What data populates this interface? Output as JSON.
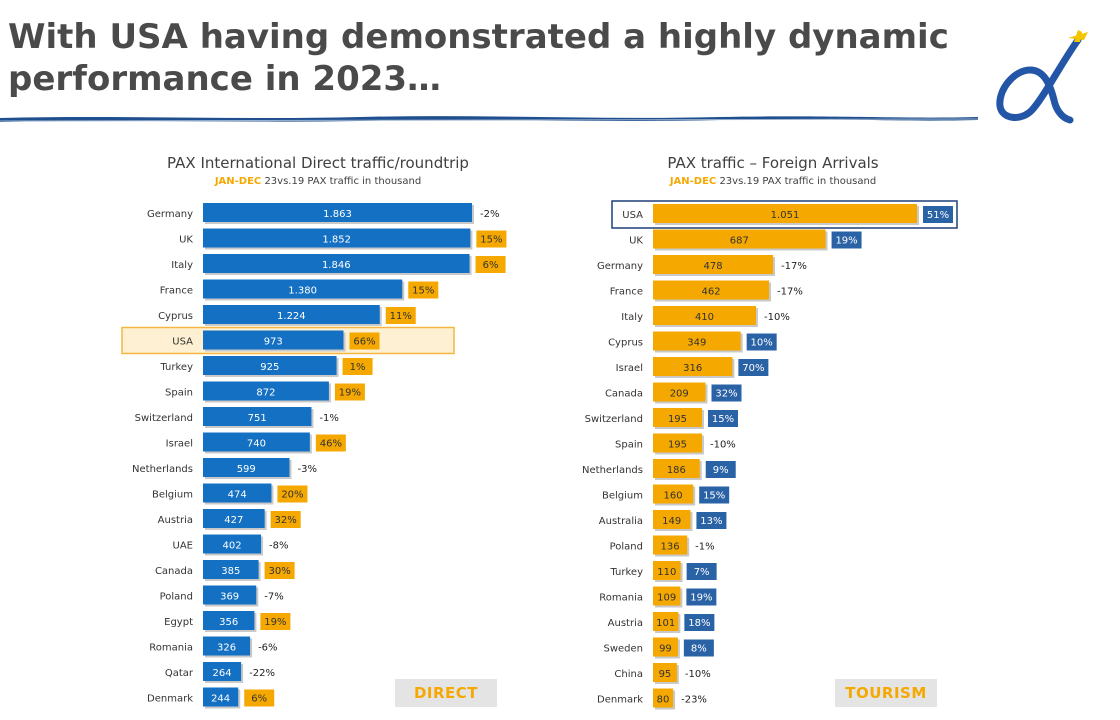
{
  "title_line1": "With USA having demonstrated a highly dynamic",
  "title_line2": "performance in 2023…",
  "colors": {
    "blue": "#1470c3",
    "orange": "#f5a800",
    "darkblue": "#2a62a6",
    "title": "#4a4a4a"
  },
  "chart_data": [
    {
      "type": "bar",
      "orientation": "horizontal",
      "title": "PAX International Direct traffic/roundtrip",
      "subtitle_highlight": "JAN-DEC",
      "subtitle_rest": " 23vs.19 PAX traffic in thousand",
      "tag": "DIRECT",
      "highlight": "USA",
      "categories": [
        "Germany",
        "UK",
        "Italy",
        "France",
        "Cyprus",
        "USA",
        "Turkey",
        "Spain",
        "Switzerland",
        "Israel",
        "Netherlands",
        "Belgium",
        "Austria",
        "UAE",
        "Canada",
        "Poland",
        "Egypt",
        "Romania",
        "Qatar",
        "Denmark"
      ],
      "values": [
        1863,
        1852,
        1846,
        1380,
        1224,
        973,
        925,
        872,
        751,
        740,
        599,
        474,
        427,
        402,
        385,
        369,
        356,
        326,
        264,
        244
      ],
      "value_labels": [
        "1.863",
        "1.852",
        "1.846",
        "1.380",
        "1.224",
        "973",
        "925",
        "872",
        "751",
        "740",
        "599",
        "474",
        "427",
        "402",
        "385",
        "369",
        "356",
        "326",
        "264",
        "244"
      ],
      "change_labels": [
        "-2%",
        "15%",
        "6%",
        "15%",
        "11%",
        "66%",
        "1%",
        "19%",
        "-1%",
        "46%",
        "-3%",
        "20%",
        "32%",
        "-8%",
        "30%",
        "-7%",
        "19%",
        "-6%",
        "-22%",
        "6%"
      ],
      "change_values": [
        -2,
        15,
        6,
        15,
        11,
        66,
        1,
        19,
        -1,
        46,
        -3,
        20,
        32,
        -8,
        30,
        -7,
        19,
        -6,
        -22,
        6
      ]
    },
    {
      "type": "bar",
      "orientation": "horizontal",
      "title": "PAX traffic – Foreign Arrivals",
      "subtitle_highlight": "JAN-DEC",
      "subtitle_rest": " 23vs.19 PAX traffic in thousand",
      "tag": "TOURISM",
      "highlight": "USA",
      "categories": [
        "USA",
        "UK",
        "Germany",
        "France",
        "Italy",
        "Cyprus",
        "Israel",
        "Canada",
        "Switzerland",
        "Spain",
        "Netherlands",
        "Belgium",
        "Australia",
        "Poland",
        "Turkey",
        "Romania",
        "Austria",
        "Sweden",
        "China",
        "Denmark"
      ],
      "values": [
        1051,
        687,
        478,
        462,
        410,
        349,
        316,
        209,
        195,
        195,
        186,
        160,
        149,
        136,
        110,
        109,
        101,
        99,
        95,
        80
      ],
      "value_labels": [
        "1.051",
        "687",
        "478",
        "462",
        "410",
        "349",
        "316",
        "209",
        "195",
        "195",
        "186",
        "160",
        "149",
        "136",
        "110",
        "109",
        "101",
        "99",
        "95",
        "80"
      ],
      "change_labels": [
        "51%",
        "19%",
        "-17%",
        "-17%",
        "-10%",
        "10%",
        "70%",
        "32%",
        "15%",
        "-10%",
        "9%",
        "15%",
        "13%",
        "-1%",
        "7%",
        "19%",
        "18%",
        "8%",
        "-10%",
        "-23%"
      ],
      "change_values": [
        51,
        19,
        -17,
        -17,
        -10,
        10,
        70,
        32,
        15,
        -10,
        9,
        15,
        13,
        -1,
        7,
        19,
        18,
        8,
        -10,
        -23
      ]
    }
  ]
}
